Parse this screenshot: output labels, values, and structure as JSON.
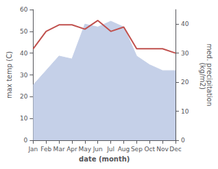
{
  "chart_data": {
    "type": "line",
    "xlabel": "date (month)",
    "ylabel": "max temp (C)",
    "y2label": "med. precipitation\n (kg/m2)",
    "categories": [
      "Jan",
      "Feb",
      "Mar",
      "Apr",
      "May",
      "Jun",
      "Jul",
      "Aug",
      "Sep",
      "Oct",
      "Nov",
      "Dec"
    ],
    "series": [
      {
        "type": "area",
        "axis": "y2",
        "color": "#c5d0e8",
        "values": [
          19,
          24,
          29,
          28,
          40,
          39,
          41,
          39,
          29,
          26,
          24,
          24
        ]
      },
      {
        "type": "line",
        "axis": "y",
        "color": "#c0504d",
        "values": [
          42,
          50,
          53,
          53,
          51,
          55,
          50,
          52,
          42,
          42,
          42,
          40
        ]
      }
    ],
    "ylim": [
      0,
      60
    ],
    "yticks": [
      0,
      10,
      20,
      30,
      40,
      50,
      60
    ],
    "y2lim": [
      0,
      45
    ],
    "y2ticks": [
      0,
      10,
      20,
      30,
      40
    ],
    "background_color": "#ffffff",
    "grid": false
  }
}
